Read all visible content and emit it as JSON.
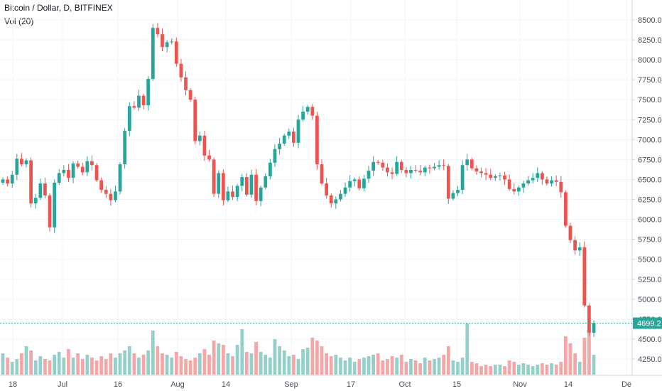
{
  "header": {
    "title": "Bitcoin / Dollar, D, BITFINEX",
    "vol_label": "Vol (20)"
  },
  "colors": {
    "up": "#26a69a",
    "down": "#ef5350",
    "vol_up": "#95cfca",
    "vol_down": "#f5a6a6",
    "grid": "#f0f3fa",
    "last_line": "#26a69a"
  },
  "chart_data": {
    "type": "candlestick",
    "title": "Bitcoin / Dollar, D, BITFINEX",
    "indicator": "Vol (20)",
    "ylim": [
      4150,
      8600
    ],
    "y_ticks": [
      "8500.0",
      "8250.0",
      "8000.0",
      "7750.0",
      "7500.0",
      "7250.0",
      "7000.0",
      "6750.0",
      "6500.0",
      "6250.0",
      "6000.0",
      "5750.0",
      "5500.0",
      "5250.0",
      "5000.0",
      "4750.0",
      "4500.0",
      "4250.0"
    ],
    "x_ticks": [
      "18",
      "Jul",
      "16",
      "Aug",
      "14",
      "Sep",
      "17",
      "Oct",
      "15",
      "Nov",
      "14",
      "De"
    ],
    "last_price": "4699.2",
    "grid": true,
    "closes": [
      6500,
      6450,
      6560,
      6760,
      6690,
      6740,
      6200,
      6270,
      6450,
      6300,
      5900,
      6460,
      6580,
      6620,
      6520,
      6700,
      6660,
      6590,
      6730,
      6680,
      6490,
      6370,
      6320,
      6240,
      6350,
      6690,
      7110,
      7420,
      7400,
      7550,
      7430,
      7760,
      8400,
      8320,
      8160,
      8220,
      8230,
      7950,
      7780,
      7620,
      7500,
      6980,
      7050,
      6800,
      6750,
      6320,
      6580,
      6240,
      6350,
      6280,
      6420,
      6530,
      6310,
      6560,
      6230,
      6400,
      6540,
      6710,
      6880,
      6950,
      7050,
      7100,
      6960,
      7250,
      7350,
      7410,
      7300,
      6690,
      6450,
      6300,
      6200,
      6250,
      6320,
      6400,
      6480,
      6500,
      6390,
      6510,
      6610,
      6720,
      6710,
      6650,
      6590,
      6570,
      6720,
      6620,
      6580,
      6620,
      6610,
      6590,
      6650,
      6640,
      6660,
      6680,
      6670,
      6260,
      6330,
      6370,
      6680,
      6750,
      6640,
      6600,
      6580,
      6560,
      6520,
      6540,
      6550,
      6500,
      6380,
      6350,
      6400,
      6450,
      6490,
      6520,
      6580,
      6500,
      6450,
      6490,
      6470,
      6340,
      5920,
      5740,
      5610,
      5650,
      4920,
      4580,
      4699
    ],
    "volumes": [
      30,
      24,
      18,
      22,
      30,
      40,
      34,
      20,
      26,
      22,
      20,
      28,
      32,
      24,
      36,
      24,
      30,
      22,
      28,
      24,
      20,
      26,
      22,
      30,
      24,
      30,
      34,
      40,
      30,
      24,
      28,
      34,
      62,
      40,
      30,
      28,
      24,
      32,
      26,
      22,
      20,
      24,
      30,
      36,
      28,
      48,
      44,
      42,
      30,
      26,
      42,
      64,
      32,
      30,
      46,
      32,
      28,
      24,
      50,
      40,
      34,
      26,
      28,
      22,
      36,
      38,
      52,
      48,
      40,
      30,
      26,
      28,
      24,
      20,
      24,
      18,
      22,
      24,
      26,
      28,
      30,
      20,
      22,
      26,
      24,
      28,
      18,
      22,
      20,
      16,
      24,
      20,
      22,
      24,
      28,
      40,
      20,
      18,
      24,
      72,
      18,
      16,
      12,
      14,
      12,
      14,
      14,
      12,
      20,
      18,
      14,
      16,
      14,
      12,
      14,
      16,
      14,
      16,
      14,
      18,
      54,
      44,
      30,
      18,
      52,
      76,
      28
    ]
  }
}
